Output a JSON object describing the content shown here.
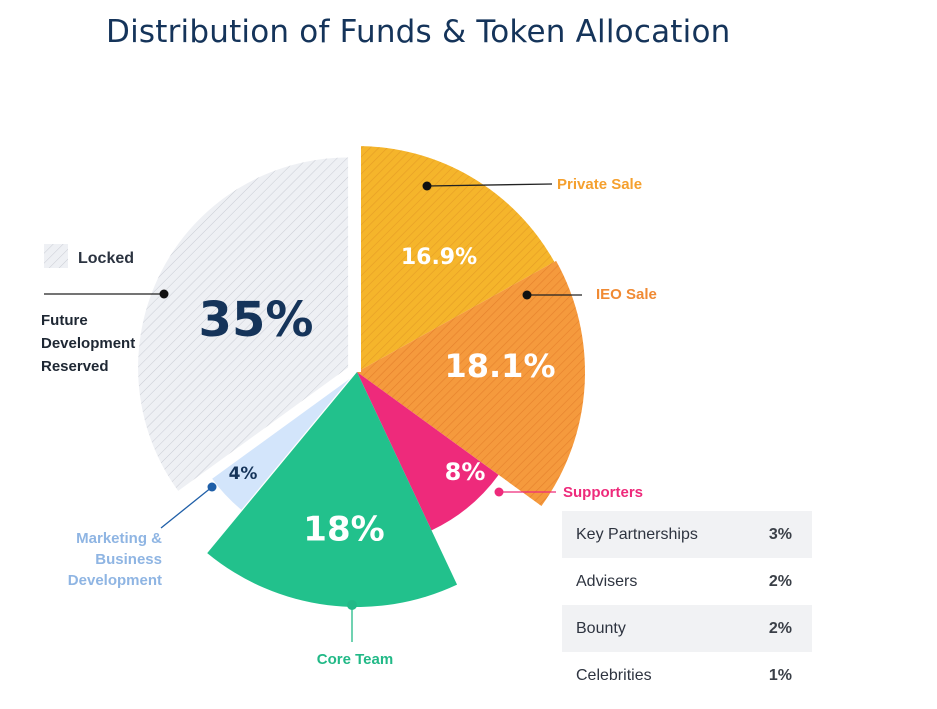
{
  "title": "Distribution of Funds & Token Allocation",
  "chart_data": {
    "type": "pie",
    "slices": [
      {
        "label": "Private Sale",
        "value": 16.9,
        "display": "16.9%",
        "color": "#f5b52b",
        "hatched": true
      },
      {
        "label": "IEO Sale",
        "value": 18.1,
        "display": "18.1%",
        "color": "#f59a3d",
        "hatched": true
      },
      {
        "label": "Supporters",
        "value": 8,
        "display": "8%",
        "color": "#ee2a7b",
        "hatched": false
      },
      {
        "label": "Core Team",
        "value": 18,
        "display": "18%",
        "color": "#22c18c",
        "hatched": false
      },
      {
        "label": "Marketing & Business Development",
        "value": 4,
        "display": "4%",
        "color": "#d3e5fb",
        "hatched": false
      },
      {
        "label": "Future Development Reserved",
        "value": 35,
        "display": "35%",
        "color": "#eef0f4",
        "hatched": true
      }
    ],
    "callouts": {
      "private_sale": "Private Sale",
      "ieo_sale": "IEO Sale",
      "supporters": "Supporters",
      "core_team": "Core Team",
      "marketing": [
        "Marketing &",
        "Business",
        "Development"
      ],
      "future": [
        "Future",
        "Development",
        "Reserved"
      ]
    },
    "legend": {
      "locked_label": "Locked",
      "placement": "left"
    },
    "other_allocations": [
      {
        "label": "Key Partnerships",
        "value": "3%"
      },
      {
        "label": "Advisers",
        "value": "2%"
      },
      {
        "label": "Bounty",
        "value": "2%"
      },
      {
        "label": "Celebrities",
        "value": "1%"
      }
    ],
    "colors": {
      "title": "#15345a",
      "private_sale_label": "#f5a02e",
      "ieo_label": "#f08a33",
      "supporters_label": "#ee2a7b",
      "core_team_label": "#22b987",
      "marketing_label": "#8fb5e3",
      "marketing_dot": "#1f5fa8",
      "big_pct_dark": "#15345a"
    }
  }
}
